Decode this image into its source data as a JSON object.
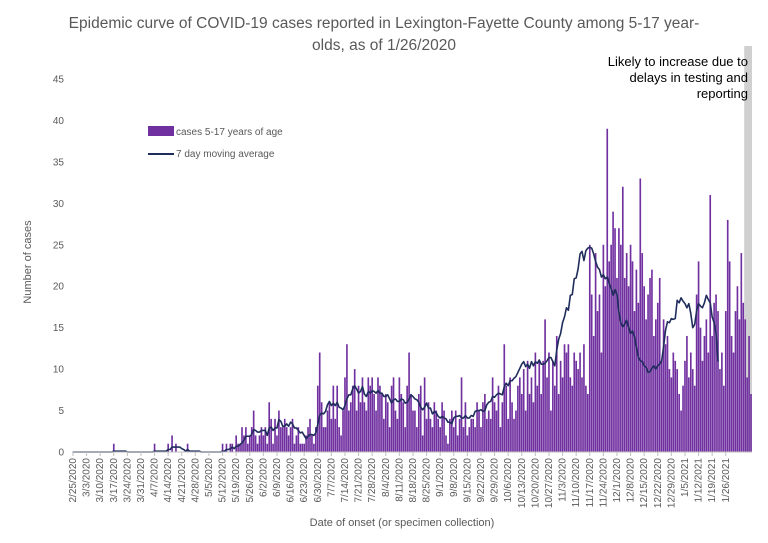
{
  "chart_data": {
    "type": "bar",
    "title_lines": [
      "Epidemic curve of COVID-19 cases reported in Lexington-Fayette County among 5-17 year-",
      "olds, as of 1/26/2020"
    ],
    "xlabel": "Date of onset (or specimen collection)",
    "ylabel": "Number of cases",
    "ylim": [
      0,
      45
    ],
    "yticks": [
      0,
      5,
      10,
      15,
      20,
      25,
      30,
      35,
      40,
      45
    ],
    "grid": false,
    "legend_position": "top-left",
    "start_date": "2020-02-25",
    "x_tick_labels": [
      "2/25/2020",
      "3/3/2020",
      "3/10/2020",
      "3/17/2020",
      "3/24/2020",
      "3/31/2020",
      "4/7/2020",
      "4/14/2020",
      "4/21/2020",
      "4/28/2020",
      "5/5/2020",
      "5/12/2020",
      "5/19/2020",
      "5/26/2020",
      "6/2/2020",
      "6/9/2020",
      "6/16/2020",
      "6/23/2020",
      "6/30/2020",
      "7/7/2020",
      "7/14/2020",
      "7/21/2020",
      "7/28/2020",
      "8/4/2020",
      "8/11/2020",
      "8/18/2020",
      "8/25/2020",
      "9/1/2020",
      "9/8/2020",
      "9/15/2020",
      "9/22/2020",
      "9/29/2020",
      "10/6/2020",
      "10/13/2020",
      "10/20/2020",
      "10/27/2020",
      "11/3/2020",
      "11/10/2020",
      "11/17/2020",
      "11/24/2020",
      "12/1/2020",
      "12/8/2020",
      "12/15/2020",
      "12/22/2020",
      "12/29/2020",
      "1/5/2021",
      "1/12/2021",
      "1/19/2021",
      "1/26/2021"
    ],
    "series": [
      {
        "name": "cases 5-17 years of age",
        "kind": "bar",
        "color": "#7030a0",
        "values": [
          0,
          0,
          0,
          0,
          0,
          0,
          0,
          0,
          0,
          0,
          0,
          0,
          0,
          0,
          0,
          0,
          0,
          0,
          0,
          0,
          0,
          1,
          0,
          0,
          0,
          0,
          0,
          0,
          0,
          0,
          0,
          0,
          0,
          0,
          0,
          0,
          0,
          0,
          0,
          0,
          0,
          0,
          1,
          0,
          0,
          0,
          0,
          0,
          0,
          1,
          0,
          2,
          0,
          1,
          0,
          0,
          0,
          0,
          0,
          1,
          0,
          0,
          0,
          0,
          0,
          0,
          0,
          0,
          0,
          0,
          0,
          0,
          0,
          0,
          0,
          0,
          0,
          1,
          0,
          1,
          0,
          1,
          1,
          0,
          2,
          1,
          1,
          3,
          2,
          3,
          1,
          2,
          3,
          5,
          2,
          1,
          2,
          3,
          2,
          3,
          1,
          6,
          4,
          1,
          4,
          2,
          5,
          3,
          3,
          4,
          3,
          2,
          3,
          4,
          1,
          2,
          3,
          1,
          1,
          1,
          2,
          3,
          4,
          2,
          1,
          3,
          8,
          12,
          6,
          3,
          3,
          5,
          6,
          4,
          8,
          4,
          8,
          3,
          2,
          5,
          9,
          13,
          5,
          6,
          8,
          10,
          5,
          8,
          6,
          9,
          6,
          5,
          9,
          8,
          9,
          7,
          5,
          9,
          8,
          7,
          4,
          7,
          6,
          3,
          8,
          9,
          5,
          4,
          9,
          7,
          6,
          3,
          8,
          12,
          7,
          5,
          5,
          3,
          7,
          8,
          2,
          9,
          4,
          6,
          4,
          3,
          6,
          5,
          4,
          3,
          6,
          5,
          2,
          1,
          4,
          5,
          3,
          5,
          2,
          4,
          9,
          3,
          6,
          2,
          3,
          4,
          4,
          3,
          6,
          5,
          3,
          6,
          7,
          4,
          5,
          4,
          9,
          6,
          5,
          8,
          3,
          6,
          13,
          8,
          4,
          9,
          6,
          4,
          5,
          8,
          9,
          7,
          10,
          5,
          11,
          7,
          9,
          6,
          12,
          8,
          11,
          7,
          11,
          16,
          9,
          12,
          5,
          11,
          8,
          14,
          7,
          11,
          9,
          13,
          12,
          13,
          9,
          8,
          12,
          11,
          10,
          12,
          9,
          13,
          8,
          7,
          25,
          19,
          14,
          24,
          17,
          19,
          12,
          25,
          20,
          39,
          23,
          25,
          29,
          27,
          21,
          27,
          25,
          32,
          21,
          24,
          20,
          25,
          23,
          17,
          22,
          18,
          33,
          24,
          20,
          16,
          19,
          21,
          22,
          14,
          16,
          18,
          21,
          11,
          16,
          13,
          14,
          10,
          9,
          12,
          11,
          10,
          7,
          5,
          8,
          11,
          14,
          9,
          12,
          10,
          8,
          19,
          23,
          15,
          11,
          14,
          16,
          12,
          31,
          14,
          18,
          19,
          17,
          10,
          12,
          8,
          17,
          28,
          23,
          14,
          12,
          17,
          20,
          16,
          24,
          18,
          16,
          9,
          14,
          7
        ]
      },
      {
        "name": "7 day moving average",
        "kind": "line",
        "color": "#1f2d5c",
        "values": [
          0,
          0,
          0,
          0,
          0,
          0,
          0,
          0,
          0,
          0,
          0,
          0,
          0,
          0,
          0,
          0,
          0,
          0,
          0,
          0,
          0,
          0.1,
          0.1,
          0.1,
          0.1,
          0.1,
          0.1,
          0.1,
          0,
          0,
          0,
          0,
          0,
          0,
          0,
          0,
          0,
          0,
          0,
          0,
          0,
          0,
          0.1,
          0.1,
          0.1,
          0.1,
          0.1,
          0.1,
          0.1,
          0.3,
          0.3,
          0.6,
          0.6,
          0.6,
          0.6,
          0.6,
          0.4,
          0.3,
          0.1,
          0.3,
          0.1,
          0.1,
          0.1,
          0.1,
          0.1,
          0.1,
          0,
          0,
          0,
          0,
          0,
          0,
          0,
          0,
          0,
          0,
          0,
          0.1,
          0.1,
          0.3,
          0.3,
          0.4,
          0.6,
          0.4,
          0.7,
          0.7,
          0.9,
          1.1,
          1.4,
          1.9,
          1.9,
          1.9,
          2.1,
          2.7,
          2.6,
          2.4,
          2.4,
          2.6,
          2.6,
          2.6,
          2.0,
          2.9,
          3.0,
          2.6,
          2.9,
          2.9,
          3.9,
          3.7,
          3.1,
          3.1,
          3.4,
          3.1,
          3.6,
          3.4,
          2.9,
          2.9,
          2.6,
          2.3,
          2.4,
          2.0,
          1.6,
          1.9,
          2.1,
          2.1,
          2.0,
          2.3,
          3.3,
          4.4,
          4.7,
          4.6,
          4.9,
          5.7,
          6.1,
          5.6,
          5.9,
          5.6,
          6.0,
          5.4,
          5.3,
          5.1,
          5.6,
          6.4,
          6.9,
          6.9,
          7.6,
          8.0,
          7.6,
          7.1,
          7.3,
          7.9,
          7.0,
          6.7,
          7.3,
          7.1,
          7.4,
          7.3,
          7.1,
          7.4,
          7.1,
          7.1,
          6.7,
          6.7,
          6.9,
          6.4,
          5.9,
          6.3,
          6.4,
          6.1,
          6.1,
          6.4,
          6.3,
          5.9,
          6.0,
          6.4,
          6.9,
          6.7,
          6.4,
          6.3,
          6.0,
          5.4,
          5.1,
          5.4,
          5.9,
          5.3,
          5.3,
          4.6,
          4.9,
          4.7,
          4.3,
          4.1,
          4.3,
          4.1,
          4.0,
          3.6,
          3.6,
          3.4,
          4.1,
          4.3,
          4.3,
          4.4,
          4.1,
          4.1,
          4.4,
          4.1,
          4.1,
          4.4,
          4.3,
          4.9,
          5.0,
          5.0,
          5.1,
          4.9,
          5.0,
          5.7,
          6.0,
          6.1,
          6.7,
          6.6,
          6.9,
          7.1,
          7.0,
          6.9,
          7.9,
          8.3,
          8.0,
          8.6,
          8.6,
          8.9,
          9.1,
          9.6,
          10.1,
          10.6,
          10.9,
          10.3,
          10.6,
          10.1,
          10.9,
          10.4,
          10.9,
          10.7,
          11.1,
          10.6,
          10.6,
          10.7,
          11.0,
          11.4,
          11.4,
          10.9,
          10.4,
          12.3,
          13.6,
          14.3,
          15.6,
          16.3,
          17.4,
          17.1,
          18.9,
          19.0,
          20.9,
          21.0,
          22.1,
          23.9,
          24.2,
          23.1,
          24.3,
          24.6,
          24.7,
          24.6,
          23.9,
          23.0,
          22.3,
          22.0,
          21.1,
          21.4,
          20.9,
          21.1,
          20.3,
          19.7,
          18.9,
          19.6,
          19.0,
          16.9,
          15.6,
          15.1,
          15.4,
          15.9,
          15.1,
          14.3,
          14.6,
          13.9,
          12.6,
          11.4,
          11.0,
          10.9,
          10.4,
          10.2,
          9.6,
          9.7,
          10.1,
          10.4,
          10.0,
          10.4,
          10.6,
          11.0,
          12.7,
          14.7,
          15.7,
          15.6,
          16.1,
          16.0,
          16.1,
          18.3,
          18.0,
          18.6,
          18.2,
          17.9,
          17.4,
          17.9,
          16.7,
          15.0,
          15.4,
          17.0,
          17.9,
          17.6,
          17.4,
          18.0,
          18.9,
          18.4,
          18.0,
          16.3,
          15.6,
          14.3,
          10.9
        ]
      }
    ],
    "shaded_region": {
      "x_start_index": 346,
      "label_lines": [
        "Likely to increase due to",
        "delays in testing and",
        "reporting"
      ],
      "color": "#d0d0d0"
    },
    "colors": {
      "bar": "#7030a0",
      "line": "#1f2d5c",
      "axis": "#bfbfbf",
      "text": "#595959"
    }
  }
}
